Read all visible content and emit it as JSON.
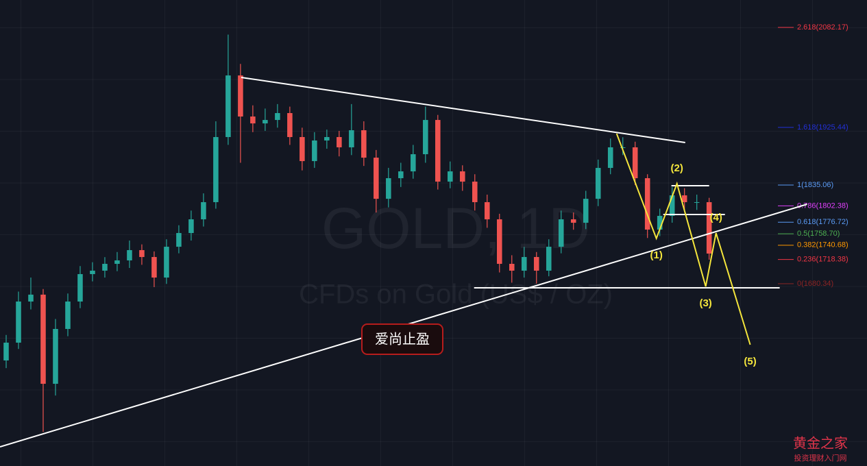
{
  "chart_data": {
    "type": "candlestick",
    "title": "GOLD, 1D",
    "subtitle": "CFDs on Gold (US$ / OZ)",
    "categories": [
      null,
      null,
      null,
      null,
      null,
      null,
      null,
      null,
      null,
      null,
      null,
      null,
      null,
      null,
      null,
      null,
      null,
      null,
      null,
      null,
      null,
      null,
      null,
      null,
      null,
      null,
      null,
      null,
      null,
      null,
      null,
      null,
      null,
      null,
      null,
      null,
      null,
      null,
      null,
      null,
      null,
      null,
      null,
      null,
      null,
      null,
      null,
      null,
      null,
      null,
      null,
      null,
      null,
      null,
      null,
      null,
      null,
      null
    ],
    "xlim": [
      -0.5,
      69.8
    ],
    "ylim": [
      1394.5,
      2125.2
    ],
    "series": [
      {
        "up_color": "#26a69a",
        "down_color": "#ef5350",
        "open": [
          1560.0,
          1587.9,
          1652.4,
          1663.2,
          1523.4,
          1609.4,
          1652.4,
          1695.4,
          1700.8,
          1711.5,
          1716.9,
          1733.0,
          1722.2,
          1690.0,
          1738.3,
          1759.8,
          1781.3,
          1808.2,
          1910.3,
          2006.9,
          1942.5,
          1931.7,
          1937.1,
          1947.9,
          1910.3,
          1872.6,
          1904.9,
          1910.3,
          1894.2,
          1921.0,
          1878.0,
          1813.5,
          1845.8,
          1856.5,
          1883.4,
          1937.1,
          1840.4,
          1856.5,
          1840.4,
          1808.2,
          1781.3,
          1711.5,
          1700.8,
          1722.2,
          1700.8,
          1738.3,
          1781.3,
          1775.9,
          1813.5,
          1861.9,
          1894.2,
          1894.2,
          1845.8,
          1765.2,
          1786.7,
          1818.9,
          1808.2,
          1808.2
        ],
        "high": [
          1600.0,
          1668.0,
          1690.0,
          1672.0,
          1625.0,
          1665.0,
          1708.0,
          1714.0,
          1722.0,
          1730.0,
          1748.0,
          1742.0,
          1731.0,
          1750.0,
          1772.0,
          1795.0,
          1822.0,
          1935.0,
          2071.0,
          2025.0,
          1960.0,
          1955.0,
          1962.0,
          1958.0,
          1925.0,
          1918.0,
          1922.0,
          1920.0,
          1962.0,
          1935.0,
          1890.0,
          1862.0,
          1870.0,
          1898.0,
          1958.0,
          1945.0,
          1872.0,
          1866.0,
          1852.0,
          1820.0,
          1790.0,
          1725.0,
          1738.0,
          1730.0,
          1750.0,
          1795.0,
          1792.0,
          1826.0,
          1875.0,
          1908.0,
          1910.0,
          1903.0,
          1852.0,
          1798.0,
          1832.0,
          1830.0,
          1820.0,
          1815.0
        ],
        "low": [
          1548.0,
          1578.0,
          1640.0,
          1448.0,
          1505.0,
          1598.0,
          1642.0,
          1684.0,
          1690.0,
          1700.0,
          1705.0,
          1710.0,
          1675.0,
          1680.0,
          1728.0,
          1748.0,
          1770.0,
          1798.0,
          1898.0,
          1870.0,
          1918.0,
          1920.0,
          1925.0,
          1898.0,
          1858.0,
          1862.0,
          1892.0,
          1880.0,
          1882.0,
          1865.0,
          1792.0,
          1800.0,
          1832.0,
          1845.0,
          1870.0,
          1828.0,
          1830.0,
          1826.0,
          1795.0,
          1768.0,
          1698.0,
          1682.0,
          1690.0,
          1680.5,
          1692.0,
          1728.0,
          1765.0,
          1766.0,
          1802.0,
          1852.0,
          1882.0,
          1835.0,
          1752.0,
          1755.0,
          1776.0,
          1796.0,
          1796.0,
          1718.0
        ],
        "close": [
          1587.9,
          1652.4,
          1663.2,
          1523.4,
          1609.4,
          1652.4,
          1695.4,
          1700.8,
          1711.5,
          1716.9,
          1733.0,
          1722.2,
          1690.0,
          1738.3,
          1759.8,
          1781.3,
          1808.2,
          1910.3,
          2006.9,
          1942.5,
          1931.7,
          1937.1,
          1947.9,
          1910.3,
          1872.6,
          1904.9,
          1910.3,
          1894.2,
          1921.0,
          1878.0,
          1813.5,
          1845.8,
          1856.5,
          1883.4,
          1937.1,
          1840.4,
          1856.5,
          1840.4,
          1808.2,
          1781.3,
          1711.5,
          1700.8,
          1722.2,
          1700.8,
          1738.3,
          1781.3,
          1775.9,
          1813.5,
          1861.9,
          1894.2,
          1894.2,
          1845.8,
          1765.2,
          1786.7,
          1818.9,
          1808.2,
          1808.2,
          1727.6
        ]
      }
    ],
    "fib_levels": [
      {
        "label": "2.618(2082.17)",
        "value": 2082.17,
        "color": "#f23645"
      },
      {
        "label": "1.618(1925.44)",
        "value": 1925.44,
        "color": "#2330d8"
      },
      {
        "label": "1(1835.06)",
        "value": 1835.06,
        "color": "#5b9cf6"
      },
      {
        "label": "0.786(1802.38)",
        "value": 1802.38,
        "color": "#e040fb"
      },
      {
        "label": "0.618(1776.72)",
        "value": 1776.72,
        "color": "#5b9cf6"
      },
      {
        "label": "0.5(1758.70)",
        "value": 1758.7,
        "color": "#4caf50"
      },
      {
        "label": "0.382(1740.68)",
        "value": 1740.68,
        "color": "#ff9800"
      },
      {
        "label": "0.236(1718.38)",
        "value": 1718.38,
        "color": "#f23645"
      },
      {
        "label": "0(1680.34)",
        "value": 1680.34,
        "color": "#8e2424"
      }
    ],
    "trendlines": [
      {
        "color": "#ffffff",
        "x": [
          19.06,
          55.06
        ],
        "y": [
          2003.8,
          1901.7
        ]
      },
      {
        "color": "#ffffff",
        "x": [
          -0.5,
          64.94
        ],
        "y": [
          1424.6,
          1805.0
        ]
      },
      {
        "color": "#ffffff",
        "x": [
          37.94,
          62.72
        ],
        "y": [
          1673.9,
          1673.9
        ]
      },
      {
        "color": "#ffffff",
        "x": [
          53.94,
          57.0
        ],
        "y": [
          1834.0,
          1834.0
        ]
      },
      {
        "color": "#ffffff",
        "x": [
          53.28,
          58.28
        ],
        "y": [
          1788.9,
          1788.9
        ]
      }
    ],
    "wave": {
      "color": "#f5e63c",
      "x": [
        49.5,
        52.72,
        54.39,
        56.72,
        57.56,
        60.33
      ],
      "y": [
        1915.7,
        1751.3,
        1837.2,
        1676.0,
        1759.8,
        1584.7
      ],
      "labels": [
        null,
        "(1)",
        "(2)",
        "(3)",
        "(4)",
        "(5)"
      ]
    }
  },
  "badge": "爱尚止盈",
  "logo": {
    "title": "黄金之家",
    "subtitle": "投资理财入门网"
  }
}
